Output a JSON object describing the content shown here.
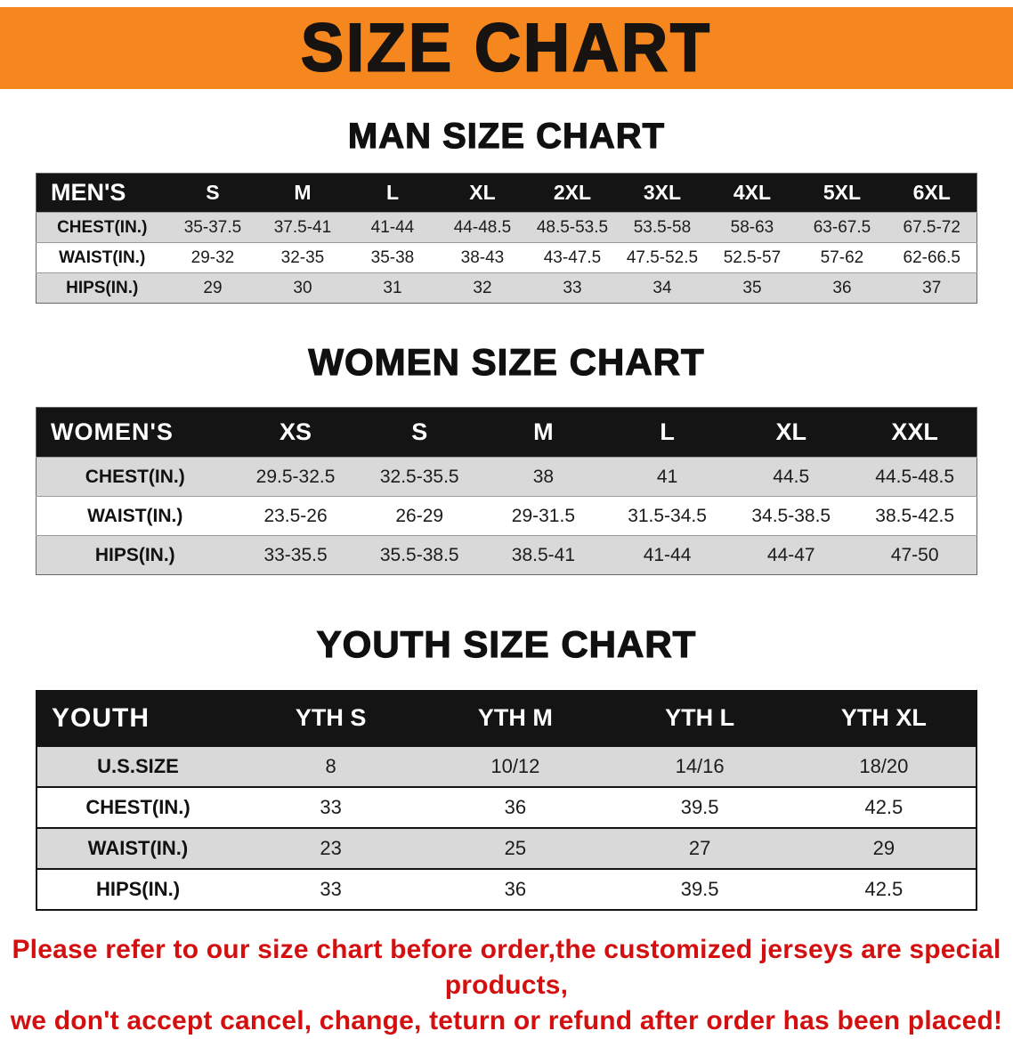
{
  "colors": {
    "banner_bg": "#f6871f",
    "header_bg": "#141414",
    "shaded_row": "#d9d9d9",
    "disclaimer_red": "#d40f0f"
  },
  "banner": {
    "title": "SIZE CHART"
  },
  "sections": [
    {
      "id": "mens",
      "heading": "MAN SIZE CHART",
      "label_col_width": "14%",
      "table": {
        "header": [
          "MEN'S",
          "S",
          "M",
          "L",
          "XL",
          "2XL",
          "3XL",
          "4XL",
          "5XL",
          "6XL"
        ],
        "rows": [
          {
            "key": "chest",
            "label": "CHEST(IN.)",
            "values": [
              "35-37.5",
              "37.5-41",
              "41-44",
              "44-48.5",
              "48.5-53.5",
              "53.5-58",
              "58-63",
              "63-67.5",
              "67.5-72"
            ]
          },
          {
            "key": "waist",
            "label": "WAIST(IN.)",
            "values": [
              "29-32",
              "32-35",
              "35-38",
              "38-43",
              "43-47.5",
              "47.5-52.5",
              "52.5-57",
              "57-62",
              "62-66.5"
            ]
          },
          {
            "key": "hips",
            "label": "HIPS(IN.)",
            "values": [
              "29",
              "30",
              "31",
              "32",
              "33",
              "34",
              "35",
              "36",
              "37"
            ]
          }
        ]
      }
    },
    {
      "id": "womens",
      "heading": "WOMEN SIZE CHART",
      "label_col_width": "21%",
      "table": {
        "header": [
          "WOMEN'S",
          "XS",
          "S",
          "M",
          "L",
          "XL",
          "XXL"
        ],
        "rows": [
          {
            "key": "chest",
            "label": "CHEST(IN.)",
            "values": [
              "29.5-32.5",
              "32.5-35.5",
              "38",
              "41",
              "44.5",
              "44.5-48.5"
            ]
          },
          {
            "key": "waist",
            "label": "WAIST(IN.)",
            "values": [
              "23.5-26",
              "26-29",
              "29-31.5",
              "31.5-34.5",
              "34.5-38.5",
              "38.5-42.5"
            ]
          },
          {
            "key": "hips",
            "label": "HIPS(IN.)",
            "values": [
              "33-35.5",
              "35.5-38.5",
              "38.5-41",
              "41-44",
              "44-47",
              "47-50"
            ]
          }
        ]
      }
    },
    {
      "id": "youth",
      "heading": "YOUTH SIZE CHART",
      "label_col_width": "21.5%",
      "table": {
        "header": [
          "YOUTH",
          "YTH S",
          "YTH M",
          "YTH L",
          "YTH XL"
        ],
        "rows": [
          {
            "key": "us-size",
            "label": "U.S.SIZE",
            "values": [
              "8",
              "10/12",
              "14/16",
              "18/20"
            ]
          },
          {
            "key": "chest",
            "label": "CHEST(IN.)",
            "values": [
              "33",
              "36",
              "39.5",
              "42.5"
            ]
          },
          {
            "key": "waist",
            "label": "WAIST(IN.)",
            "values": [
              "23",
              "25",
              "27",
              "29"
            ]
          },
          {
            "key": "hips",
            "label": "HIPS(IN.)",
            "values": [
              "33",
              "36",
              "39.5",
              "42.5"
            ]
          }
        ]
      }
    }
  ],
  "footer": {
    "line1": "Please refer to our size chart before order,the customized jerseys are special products,",
    "line2": "we don't accept cancel, change, teturn or refund after order has been placed!"
  }
}
